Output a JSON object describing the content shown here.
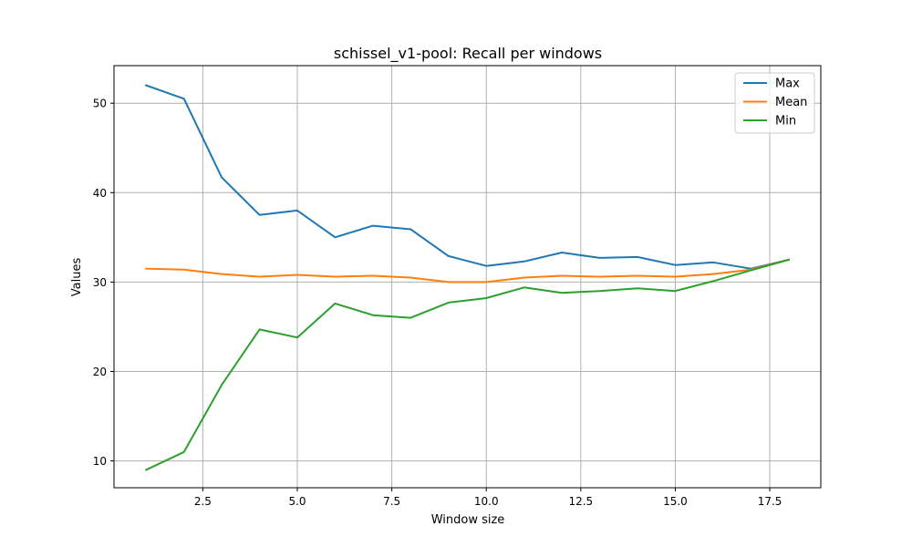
{
  "chart_data": {
    "type": "line",
    "title": "schissel_v1-pool: Recall per windows",
    "xlabel": "Window size",
    "ylabel": "Values",
    "xlim": [
      0.15,
      18.85
    ],
    "ylim": [
      7.0,
      54.2
    ],
    "xticks": [
      2.5,
      5.0,
      7.5,
      10.0,
      12.5,
      15.0,
      17.5
    ],
    "xtick_labels": [
      "2.5",
      "5.0",
      "7.5",
      "10.0",
      "12.5",
      "15.0",
      "17.5"
    ],
    "yticks": [
      10,
      20,
      30,
      40,
      50
    ],
    "ytick_labels": [
      "10",
      "20",
      "30",
      "40",
      "50"
    ],
    "grid": true,
    "legend_position": "top-right",
    "x": [
      1,
      2,
      3,
      4,
      5,
      6,
      7,
      8,
      9,
      10,
      11,
      12,
      13,
      14,
      15,
      16,
      17,
      18
    ],
    "series": [
      {
        "name": "Max",
        "color": "#1f77b4",
        "values": [
          52.0,
          50.5,
          41.7,
          37.5,
          38.0,
          35.0,
          36.3,
          35.9,
          32.9,
          31.8,
          32.3,
          33.3,
          32.7,
          32.8,
          31.9,
          32.2,
          31.5,
          32.5
        ]
      },
      {
        "name": "Mean",
        "color": "#ff7f0e",
        "values": [
          31.5,
          31.4,
          30.9,
          30.6,
          30.8,
          30.6,
          30.7,
          30.5,
          30.0,
          30.0,
          30.5,
          30.7,
          30.6,
          30.7,
          30.6,
          30.9,
          31.4,
          32.5
        ]
      },
      {
        "name": "Min",
        "color": "#2ca02c",
        "values": [
          9.0,
          11.0,
          18.5,
          24.7,
          23.8,
          27.6,
          26.3,
          26.0,
          27.7,
          28.2,
          29.4,
          28.8,
          29.0,
          29.3,
          29.0,
          30.1,
          31.3,
          32.5
        ]
      }
    ]
  }
}
